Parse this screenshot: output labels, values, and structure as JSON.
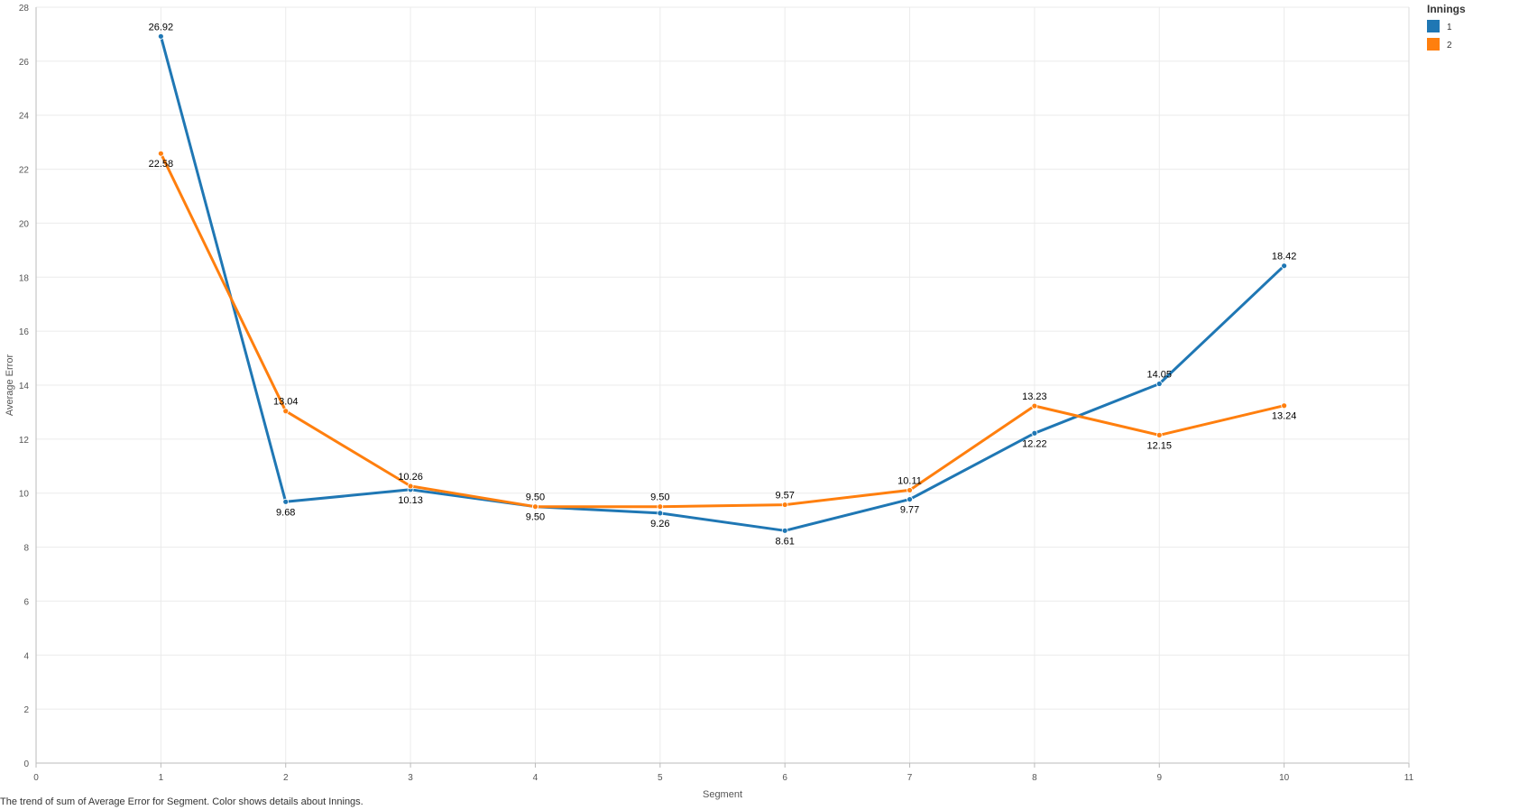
{
  "caption": "The trend of sum of Average Error for Segment.  Color shows details about Innings.",
  "chart_data": {
    "type": "line",
    "xlabel": "Segment",
    "ylabel": "Average Error",
    "xlim": [
      0,
      11
    ],
    "ylim": [
      0,
      28
    ],
    "x_ticks": [
      0,
      1,
      2,
      3,
      4,
      5,
      6,
      7,
      8,
      9,
      10,
      11
    ],
    "y_ticks": [
      0,
      2,
      4,
      6,
      8,
      10,
      12,
      14,
      16,
      18,
      20,
      22,
      24,
      26,
      28
    ],
    "grid": true,
    "legend": {
      "title": "Innings",
      "position": "top-right"
    },
    "series": [
      {
        "name": "1",
        "color": "#1f77b4",
        "x": [
          1,
          2,
          3,
          4,
          5,
          6,
          7,
          8,
          9,
          10
        ],
        "values": [
          26.92,
          9.68,
          10.13,
          9.5,
          9.26,
          8.61,
          9.77,
          12.22,
          14.05,
          18.42
        ],
        "labels": [
          "26.92",
          "9.68",
          "10.13",
          "9.50",
          "9.26",
          "8.61",
          "9.77",
          "12.22",
          "14.05",
          "18.42"
        ]
      },
      {
        "name": "2",
        "color": "#ff7f0e",
        "x": [
          1,
          2,
          3,
          4,
          5,
          6,
          7,
          8,
          9,
          10
        ],
        "values": [
          22.58,
          13.04,
          10.26,
          9.5,
          9.5,
          9.57,
          10.11,
          13.23,
          12.15,
          13.24
        ],
        "labels": [
          "22.58",
          "13.04",
          "10.26",
          "9.50",
          "9.50",
          "9.57",
          "10.11",
          "13.23",
          "12.15",
          "13.24"
        ]
      }
    ]
  }
}
